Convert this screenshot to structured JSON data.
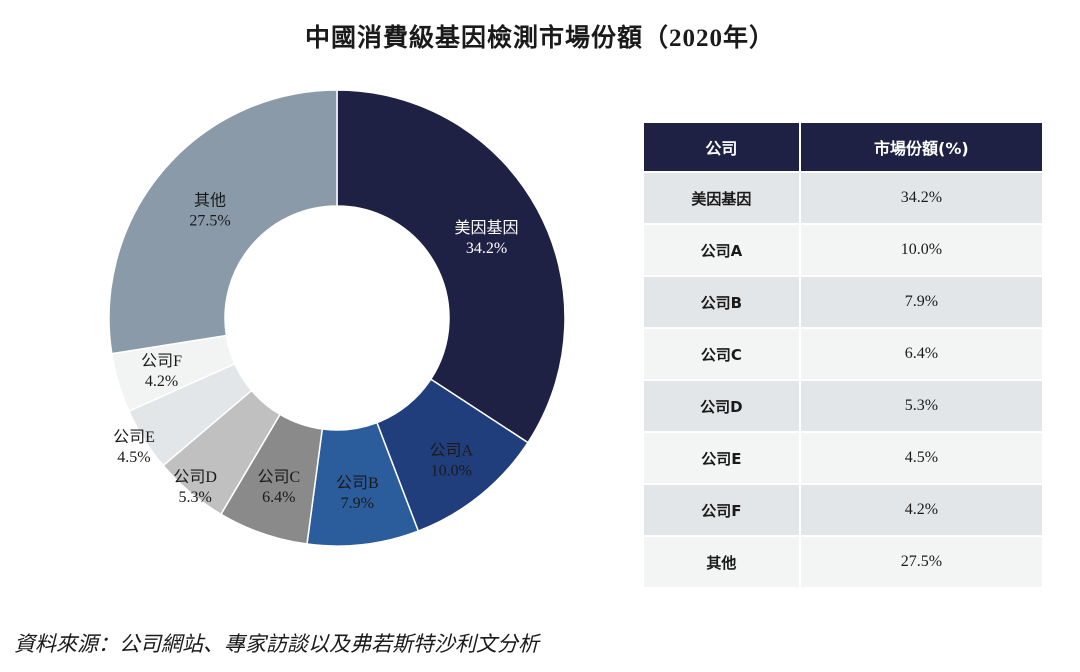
{
  "title": "中國消費級基因檢測市場份額（2020年）",
  "source": "資料來源：公司網站、專家訪談以及弗若斯特沙利文分析",
  "table": {
    "headers": [
      "公司",
      "市場份額(%)"
    ]
  },
  "chart_data": {
    "type": "pie",
    "donut": true,
    "title": "中國消費級基因檢測市場份額（2020年）",
    "unit": "%",
    "start": "top, clockwise",
    "slices": [
      {
        "label": "美因基因",
        "value": 34.2,
        "display": "34.2%",
        "color": "#1e2044",
        "text_color": "#ffffff"
      },
      {
        "label": "公司A",
        "value": 10.0,
        "display": "10.0%",
        "color": "#213e7c",
        "text_color": "#1a1a1a"
      },
      {
        "label": "公司B",
        "value": 7.9,
        "display": "7.9%",
        "color": "#2b5c9b",
        "text_color": "#1a1a1a"
      },
      {
        "label": "公司C",
        "value": 6.4,
        "display": "6.4%",
        "color": "#8a8a8a",
        "text_color": "#1a1a1a"
      },
      {
        "label": "公司D",
        "value": 5.3,
        "display": "5.3%",
        "color": "#c0c0c0",
        "text_color": "#1a1a1a"
      },
      {
        "label": "公司E",
        "value": 4.5,
        "display": "4.5%",
        "color": "#e2e6e8",
        "text_color": "#1a1a1a"
      },
      {
        "label": "公司F",
        "value": 4.2,
        "display": "4.2%",
        "color": "#f2f4f4",
        "text_color": "#1a1a1a"
      },
      {
        "label": "其他",
        "value": 27.5,
        "display": "27.5%",
        "color": "#8a9aa8",
        "text_color": "#1a1a1a"
      }
    ]
  }
}
